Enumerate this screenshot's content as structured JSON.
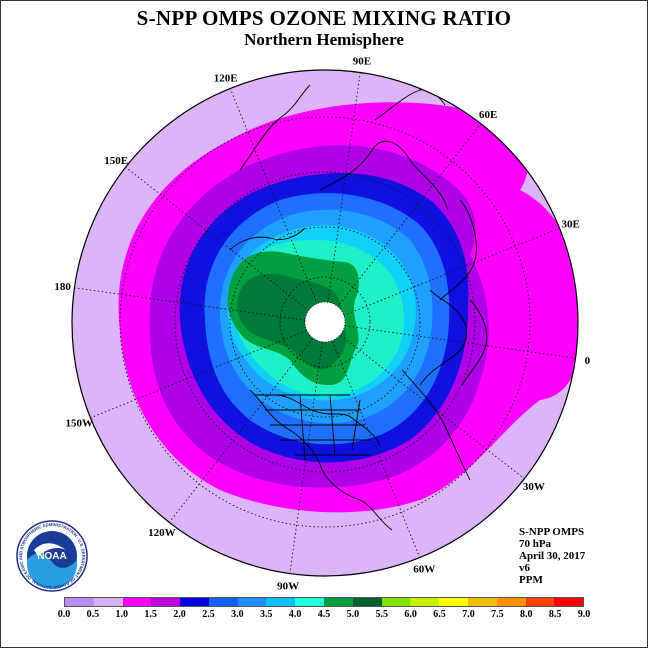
{
  "title": "S-NPP OMPS OZONE MIXING RATIO",
  "subtitle": "Northern Hemisphere",
  "longitude_labels": [
    "90E",
    "60E",
    "30E",
    "0",
    "30W",
    "60W",
    "90W",
    "120W",
    "150W",
    "180",
    "150E",
    "120E"
  ],
  "info": {
    "instrument": "S-NPP OMPS",
    "level": "70 hPa",
    "date": "April 30, 2017",
    "version": "v6",
    "units": "PPM"
  },
  "logo": {
    "text": "NOAA",
    "ring_text": "NATIONAL OCEANIC AND ATMOSPHERIC ADMINISTRATION · U.S. DEPARTMENT OF COMMERCE"
  },
  "colorbar": {
    "labels": [
      "0.0",
      "0.5",
      "1.0",
      "1.5",
      "2.0",
      "2.5",
      "3.0",
      "3.5",
      "4.0",
      "4.5",
      "5.0",
      "5.5",
      "6.0",
      "6.5",
      "7.0",
      "7.5",
      "8.0",
      "8.5",
      "9.0"
    ],
    "colors": [
      "#b88cf0",
      "#d8b0f8",
      "#ff00ff",
      "#c000e0",
      "#0000e0",
      "#1060ff",
      "#1f90ff",
      "#10c0ff",
      "#20ffe0",
      "#00a040",
      "#006030",
      "#80e000",
      "#c8f000",
      "#ffff00",
      "#f0c000",
      "#ff9000",
      "#ff4000",
      "#ff0000",
      "#8b4a30"
    ]
  },
  "ozone_bands": [
    {
      "name": "1.0-1.5",
      "color": "#ff00ff"
    },
    {
      "name": "1.5-2.0",
      "color": "#b000e8"
    },
    {
      "name": "2.0-2.5",
      "color": "#1010e0"
    },
    {
      "name": "2.5-3.0",
      "color": "#1f70ff"
    },
    {
      "name": "3.0-3.5",
      "color": "#1fa0ff"
    },
    {
      "name": "3.5-4.0",
      "color": "#10d0f8"
    },
    {
      "name": "4.0-4.5",
      "color": "#20f0c8"
    },
    {
      "name": "4.5-5.0",
      "color": "#00a040"
    },
    {
      "name": "5.0-5.5",
      "color": "#007a38"
    }
  ],
  "background_band_color": "#dcb4fa"
}
